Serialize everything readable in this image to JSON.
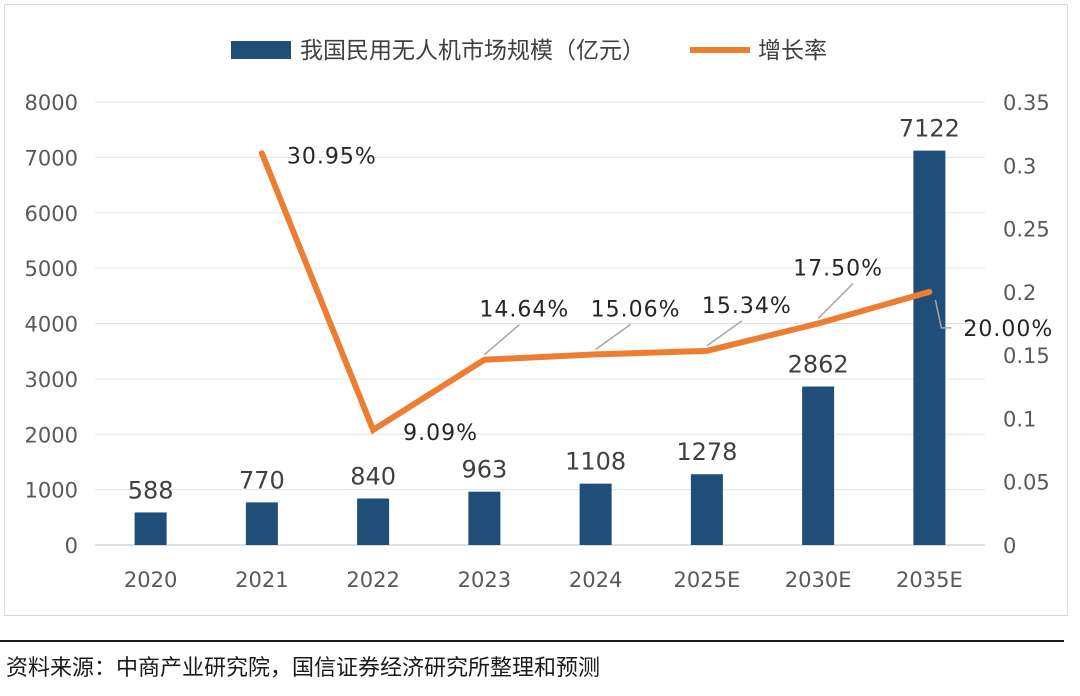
{
  "chart_data": {
    "type": "bar+line",
    "categories": [
      "2020",
      "2021",
      "2022",
      "2023",
      "2024",
      "2025E",
      "2030E",
      "2035E"
    ],
    "series": [
      {
        "name": "我国民用无人机市场规模（亿元）",
        "kind": "bar",
        "axis": "left",
        "color": "#1f4e79",
        "values": [
          588,
          770,
          840,
          963,
          1108,
          1278,
          2862,
          7122
        ],
        "labels": [
          "588",
          "770",
          "840",
          "963",
          "1108",
          "1278",
          "2862",
          "7122"
        ]
      },
      {
        "name": "增长率",
        "kind": "line",
        "axis": "right",
        "color": "#ed7d31",
        "values": [
          null,
          0.3095,
          0.0909,
          0.1464,
          0.1506,
          0.1534,
          0.175,
          0.2
        ],
        "labels": [
          null,
          "30.95%",
          "9.09%",
          "14.64%",
          "15.06%",
          "15.34%",
          "17.50%",
          "20.00%"
        ]
      }
    ],
    "left_axis": {
      "ylim": [
        0,
        8000
      ],
      "ticks": [
        0,
        1000,
        2000,
        3000,
        4000,
        5000,
        6000,
        7000,
        8000
      ],
      "tick_labels": [
        "0",
        "1000",
        "2000",
        "3000",
        "4000",
        "5000",
        "6000",
        "7000",
        "8000"
      ]
    },
    "right_axis": {
      "ylim": [
        0,
        0.35
      ],
      "ticks": [
        0,
        0.05,
        0.1,
        0.15,
        0.2,
        0.25,
        0.3,
        0.35
      ],
      "tick_labels": [
        "0",
        "0.05",
        "0.1",
        "0.15",
        "0.2",
        "0.25",
        "0.3",
        "0.35"
      ]
    },
    "grid": true,
    "legend_position": "top"
  },
  "source_note": "资料来源：中商产业研究院，国信证券经济研究所整理和预测"
}
